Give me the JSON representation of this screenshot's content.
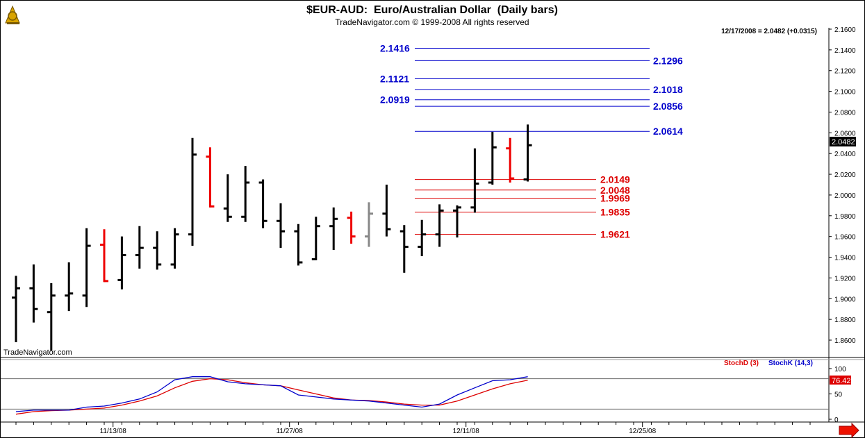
{
  "chart_data": {
    "type": "bar",
    "subtype": "ohlc",
    "title": "$EUR-AUD:  Euro/Australian Dollar  (Daily bars)",
    "subtitle": "TradeNavigator.com © 1999-2008 All rights reserved",
    "watermark": "TradeNavigator.com",
    "quote_label": "12/17/2008 = 2.0482 (+0.0315)",
    "last_price_label": "2.0482",
    "ylim": [
      1.848,
      2.162
    ],
    "y_ticks": [
      "1.8600",
      "1.8800",
      "1.9000",
      "1.9200",
      "1.9400",
      "1.9600",
      "1.9800",
      "2.0000",
      "2.0200",
      "2.0400",
      "2.0600",
      "2.0800",
      "2.1000",
      "2.1200",
      "2.1400",
      "2.1600"
    ],
    "x_tick_labels": [
      {
        "label": "11/13/08",
        "bar_index": 5.5
      },
      {
        "label": "11/27/08",
        "bar_index": 15.5
      },
      {
        "label": "12/11/08",
        "bar_index": 25.5
      },
      {
        "label": "12/25/08",
        "bar_index": 35.5
      }
    ],
    "colors": {
      "up": "#000000",
      "down": "#ee0000",
      "neutral": "#888888",
      "blue_level": "#0000cc",
      "red_level": "#dd0000"
    },
    "bars": [
      {
        "o": 1.901,
        "h": 1.922,
        "l": 1.858,
        "c": 1.91,
        "color": "up"
      },
      {
        "o": 1.91,
        "h": 1.933,
        "l": 1.877,
        "c": 1.89,
        "color": "up"
      },
      {
        "o": 1.887,
        "h": 1.915,
        "l": 1.85,
        "c": 1.903,
        "color": "up"
      },
      {
        "o": 1.903,
        "h": 1.935,
        "l": 1.888,
        "c": 1.905,
        "color": "up"
      },
      {
        "o": 1.903,
        "h": 1.968,
        "l": 1.892,
        "c": 1.951,
        "color": "up"
      },
      {
        "o": 1.952,
        "h": 1.967,
        "l": 1.916,
        "c": 1.917,
        "color": "down"
      },
      {
        "o": 1.918,
        "h": 1.96,
        "l": 1.909,
        "c": 1.942,
        "color": "up"
      },
      {
        "o": 1.942,
        "h": 1.97,
        "l": 1.929,
        "c": 1.949,
        "color": "up"
      },
      {
        "o": 1.949,
        "h": 1.965,
        "l": 1.928,
        "c": 1.933,
        "color": "up"
      },
      {
        "o": 1.933,
        "h": 1.968,
        "l": 1.929,
        "c": 1.962,
        "color": "up"
      },
      {
        "o": 1.962,
        "h": 2.055,
        "l": 1.951,
        "c": 2.039,
        "color": "up"
      },
      {
        "o": 2.037,
        "h": 2.046,
        "l": 1.988,
        "c": 1.989,
        "color": "down"
      },
      {
        "o": 1.987,
        "h": 2.02,
        "l": 1.974,
        "c": 1.979,
        "color": "up"
      },
      {
        "o": 1.979,
        "h": 2.028,
        "l": 1.974,
        "c": 2.012,
        "color": "up"
      },
      {
        "o": 2.012,
        "h": 2.015,
        "l": 1.968,
        "c": 1.975,
        "color": "up"
      },
      {
        "o": 1.975,
        "h": 1.992,
        "l": 1.949,
        "c": 1.965,
        "color": "up"
      },
      {
        "o": 1.965,
        "h": 1.972,
        "l": 1.932,
        "c": 1.935,
        "color": "up"
      },
      {
        "o": 1.938,
        "h": 1.979,
        "l": 1.937,
        "c": 1.97,
        "color": "up"
      },
      {
        "o": 1.97,
        "h": 1.988,
        "l": 1.947,
        "c": 1.977,
        "color": "up"
      },
      {
        "o": 1.978,
        "h": 1.984,
        "l": 1.953,
        "c": 1.96,
        "color": "down"
      },
      {
        "o": 1.96,
        "h": 1.993,
        "l": 1.95,
        "c": 1.982,
        "color": "neutral"
      },
      {
        "o": 1.982,
        "h": 2.01,
        "l": 1.96,
        "c": 1.967,
        "color": "up"
      },
      {
        "o": 1.965,
        "h": 1.971,
        "l": 1.925,
        "c": 1.95,
        "color": "up"
      },
      {
        "o": 1.95,
        "h": 1.976,
        "l": 1.941,
        "c": 1.962,
        "color": "up"
      },
      {
        "o": 1.962,
        "h": 1.991,
        "l": 1.95,
        "c": 1.985,
        "color": "up"
      },
      {
        "o": 1.985,
        "h": 1.99,
        "l": 1.959,
        "c": 1.988,
        "color": "up"
      },
      {
        "o": 1.988,
        "h": 2.045,
        "l": 1.983,
        "c": 2.011,
        "color": "up"
      },
      {
        "o": 2.012,
        "h": 2.061,
        "l": 2.01,
        "c": 2.046,
        "color": "up"
      },
      {
        "o": 2.045,
        "h": 2.055,
        "l": 2.012,
        "c": 2.016,
        "color": "down"
      },
      {
        "o": 2.015,
        "h": 2.068,
        "l": 2.013,
        "c": 2.048,
        "color": "up"
      }
    ],
    "levels": {
      "blue": [
        {
          "label": "2.1416",
          "value": 2.1416,
          "label_side": "left"
        },
        {
          "label": "2.1296",
          "value": 2.1296,
          "label_side": "right"
        },
        {
          "label": "2.1121",
          "value": 2.1121,
          "label_side": "left"
        },
        {
          "label": "2.1018",
          "value": 2.1018,
          "label_side": "right"
        },
        {
          "label": "2.0919",
          "value": 2.0919,
          "label_side": "left"
        },
        {
          "label": "2.0856",
          "value": 2.0856,
          "label_side": "right"
        },
        {
          "label": "2.0614",
          "value": 2.0614,
          "label_side": "right"
        }
      ],
      "red": [
        {
          "label": "2.0149",
          "value": 2.0149
        },
        {
          "label": "2.0048",
          "value": 2.0048
        },
        {
          "label": "1.9969",
          "value": 1.9969
        },
        {
          "label": "1.9835",
          "value": 1.9835
        },
        {
          "label": "1.9621",
          "value": 1.9621
        }
      ]
    },
    "stochastic": {
      "legend": [
        {
          "name": "StochD (3)",
          "color": "#dd0000"
        },
        {
          "name": "StochK (14,3)",
          "color": "#0000cc"
        }
      ],
      "ylim": [
        -5,
        107
      ],
      "y_ticks": [
        "0",
        "50",
        "100"
      ],
      "ref_levels": [
        80,
        20
      ],
      "last_value_label": "76.42",
      "k_values": [
        15,
        18,
        18,
        18,
        24,
        26,
        32,
        40,
        54,
        78,
        84,
        84,
        74,
        70,
        68,
        66,
        48,
        44,
        40,
        38,
        36,
        32,
        28,
        24,
        30,
        48,
        62,
        76,
        78,
        84
      ],
      "d_values": [
        10,
        15,
        17,
        18,
        20,
        22,
        28,
        36,
        46,
        62,
        75,
        80,
        78,
        72,
        68,
        66,
        58,
        50,
        42,
        38,
        37,
        34,
        30,
        28,
        28,
        36,
        48,
        60,
        70,
        77
      ]
    }
  }
}
